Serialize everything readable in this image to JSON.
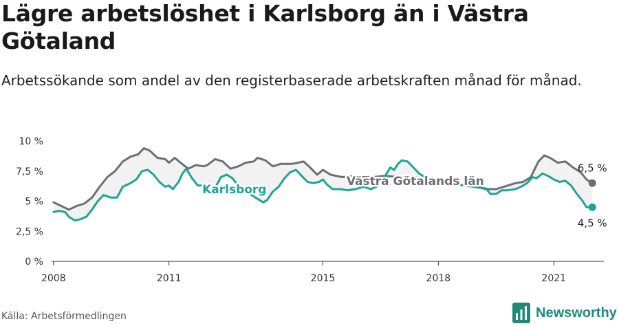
{
  "title": "Lägre arbetslöshet i Karlsborg än i Västra Götaland",
  "subtitle": "Arbetssökande som andel av den registerbaserade arbetskraften månad för månad.",
  "source": "Källa: Arbetsförmedlingen",
  "brand": {
    "name": "Newsworthy",
    "icon": "newsworthy-logo-icon",
    "color": "#1f8a7a"
  },
  "chart_data": {
    "type": "line",
    "title": "Lägre arbetslöshet i Karlsborg än i Västra Götaland",
    "xlabel": "",
    "ylabel": "",
    "xlim": [
      2007.95,
      2022.3
    ],
    "ylim": [
      0,
      10
    ],
    "x_ticks": [
      2008,
      2011,
      2015,
      2018,
      2021
    ],
    "x_tick_labels": [
      "2008",
      "2011",
      "2015",
      "2018",
      "2021"
    ],
    "y_ticks": [
      0,
      2.5,
      5,
      7.5,
      10
    ],
    "y_tick_labels": [
      "0 %",
      "2,5 %",
      "5 %",
      "7,5 %",
      "10 %"
    ],
    "grid": false,
    "series": [
      {
        "name": "Västra Götalands län",
        "color": "#6d6d73",
        "end_label": "6,5 %",
        "points": [
          [
            2008.0,
            4.9
          ],
          [
            2008.2,
            4.6
          ],
          [
            2008.4,
            4.3
          ],
          [
            2008.6,
            4.6
          ],
          [
            2008.8,
            4.8
          ],
          [
            2009.0,
            5.3
          ],
          [
            2009.2,
            6.2
          ],
          [
            2009.4,
            7.0
          ],
          [
            2009.6,
            7.5
          ],
          [
            2009.8,
            8.3
          ],
          [
            2010.0,
            8.7
          ],
          [
            2010.2,
            8.9
          ],
          [
            2010.35,
            9.4
          ],
          [
            2010.5,
            9.2
          ],
          [
            2010.7,
            8.6
          ],
          [
            2010.9,
            8.5
          ],
          [
            2011.0,
            8.2
          ],
          [
            2011.15,
            8.6
          ],
          [
            2011.3,
            8.2
          ],
          [
            2011.5,
            7.7
          ],
          [
            2011.7,
            8.0
          ],
          [
            2011.9,
            7.9
          ],
          [
            2012.0,
            8.0
          ],
          [
            2012.2,
            8.5
          ],
          [
            2012.4,
            8.3
          ],
          [
            2012.6,
            7.7
          ],
          [
            2012.8,
            7.9
          ],
          [
            2013.0,
            8.2
          ],
          [
            2013.2,
            8.3
          ],
          [
            2013.3,
            8.6
          ],
          [
            2013.5,
            8.4
          ],
          [
            2013.7,
            7.9
          ],
          [
            2013.9,
            8.1
          ],
          [
            2014.2,
            8.1
          ],
          [
            2014.5,
            8.3
          ],
          [
            2014.7,
            7.7
          ],
          [
            2014.85,
            7.2
          ],
          [
            2015.0,
            7.6
          ],
          [
            2015.2,
            7.2
          ],
          [
            2015.5,
            7.0
          ],
          [
            2015.8,
            7.1
          ],
          [
            2016.0,
            7.0
          ],
          [
            2016.3,
            7.0
          ],
          [
            2016.6,
            7.1
          ],
          [
            2017.0,
            7.0
          ],
          [
            2017.3,
            7.0
          ],
          [
            2017.6,
            6.9
          ],
          [
            2018.0,
            6.8
          ],
          [
            2018.3,
            6.5
          ],
          [
            2018.7,
            6.3
          ],
          [
            2019.0,
            6.2
          ],
          [
            2019.3,
            6.0
          ],
          [
            2019.5,
            6.0
          ],
          [
            2019.8,
            6.3
          ],
          [
            2020.0,
            6.5
          ],
          [
            2020.2,
            6.6
          ],
          [
            2020.4,
            7.0
          ],
          [
            2020.6,
            8.3
          ],
          [
            2020.75,
            8.8
          ],
          [
            2020.9,
            8.6
          ],
          [
            2021.1,
            8.2
          ],
          [
            2021.3,
            8.3
          ],
          [
            2021.5,
            7.8
          ],
          [
            2021.7,
            7.4
          ],
          [
            2021.85,
            6.8
          ],
          [
            2022.0,
            6.5
          ]
        ]
      },
      {
        "name": "Karlsborg",
        "color": "#1ba596",
        "end_label": "4,5 %",
        "points": [
          [
            2008.0,
            4.1
          ],
          [
            2008.15,
            4.2
          ],
          [
            2008.3,
            4.1
          ],
          [
            2008.4,
            3.7
          ],
          [
            2008.55,
            3.4
          ],
          [
            2008.7,
            3.5
          ],
          [
            2008.85,
            3.7
          ],
          [
            2009.0,
            4.3
          ],
          [
            2009.15,
            5.0
          ],
          [
            2009.3,
            5.5
          ],
          [
            2009.5,
            5.3
          ],
          [
            2009.65,
            5.3
          ],
          [
            2009.8,
            6.2
          ],
          [
            2010.0,
            6.5
          ],
          [
            2010.15,
            6.8
          ],
          [
            2010.3,
            7.5
          ],
          [
            2010.45,
            7.6
          ],
          [
            2010.6,
            7.2
          ],
          [
            2010.75,
            6.6
          ],
          [
            2010.9,
            6.2
          ],
          [
            2011.0,
            6.3
          ],
          [
            2011.1,
            6.0
          ],
          [
            2011.25,
            6.6
          ],
          [
            2011.35,
            7.3
          ],
          [
            2011.45,
            7.7
          ],
          [
            2011.6,
            6.9
          ],
          [
            2011.75,
            6.3
          ],
          [
            2011.9,
            6.3
          ],
          [
            2012.05,
            6.4
          ],
          [
            2012.2,
            6.1
          ],
          [
            2012.35,
            7.0
          ],
          [
            2012.5,
            7.2
          ],
          [
            2012.65,
            6.9
          ],
          [
            2012.8,
            6.3
          ],
          [
            2013.0,
            5.8
          ],
          [
            2013.2,
            5.4
          ],
          [
            2013.35,
            5.1
          ],
          [
            2013.45,
            4.9
          ],
          [
            2013.55,
            5.1
          ],
          [
            2013.7,
            5.8
          ],
          [
            2013.85,
            6.2
          ],
          [
            2014.0,
            6.9
          ],
          [
            2014.15,
            7.4
          ],
          [
            2014.3,
            7.6
          ],
          [
            2014.45,
            7.1
          ],
          [
            2014.6,
            6.6
          ],
          [
            2014.75,
            6.5
          ],
          [
            2014.9,
            6.6
          ],
          [
            2015.0,
            6.8
          ],
          [
            2015.1,
            6.4
          ],
          [
            2015.25,
            6.0
          ],
          [
            2015.45,
            6.0
          ],
          [
            2015.65,
            5.9
          ],
          [
            2015.85,
            6.0
          ],
          [
            2016.05,
            6.2
          ],
          [
            2016.25,
            6.0
          ],
          [
            2016.45,
            6.3
          ],
          [
            2016.6,
            7.0
          ],
          [
            2016.75,
            7.8
          ],
          [
            2016.85,
            7.6
          ],
          [
            2016.95,
            8.1
          ],
          [
            2017.05,
            8.4
          ],
          [
            2017.2,
            8.3
          ],
          [
            2017.35,
            7.8
          ],
          [
            2017.5,
            7.3
          ],
          [
            2017.7,
            6.9
          ],
          [
            2017.9,
            6.6
          ],
          [
            2018.1,
            6.4
          ],
          [
            2018.3,
            6.3
          ],
          [
            2018.5,
            6.4
          ],
          [
            2018.7,
            6.3
          ],
          [
            2018.9,
            6.2
          ],
          [
            2019.1,
            6.1
          ],
          [
            2019.25,
            6.0
          ],
          [
            2019.35,
            5.6
          ],
          [
            2019.5,
            5.6
          ],
          [
            2019.65,
            5.9
          ],
          [
            2019.8,
            5.9
          ],
          [
            2020.0,
            6.0
          ],
          [
            2020.15,
            6.2
          ],
          [
            2020.3,
            6.5
          ],
          [
            2020.45,
            7.0
          ],
          [
            2020.55,
            6.9
          ],
          [
            2020.7,
            7.3
          ],
          [
            2020.85,
            7.1
          ],
          [
            2021.0,
            6.8
          ],
          [
            2021.15,
            6.6
          ],
          [
            2021.3,
            6.7
          ],
          [
            2021.45,
            6.3
          ],
          [
            2021.6,
            5.6
          ],
          [
            2021.75,
            5.0
          ],
          [
            2021.85,
            4.5
          ],
          [
            2022.0,
            4.5
          ]
        ]
      }
    ],
    "annotations": [
      {
        "text": "Karlsborg",
        "series": "Karlsborg",
        "x": 2012.7,
        "y": 6.0
      },
      {
        "text": "Västra Götalands län",
        "series": "Västra Götalands län",
        "x": 2017.4,
        "y": 6.7
      }
    ]
  }
}
